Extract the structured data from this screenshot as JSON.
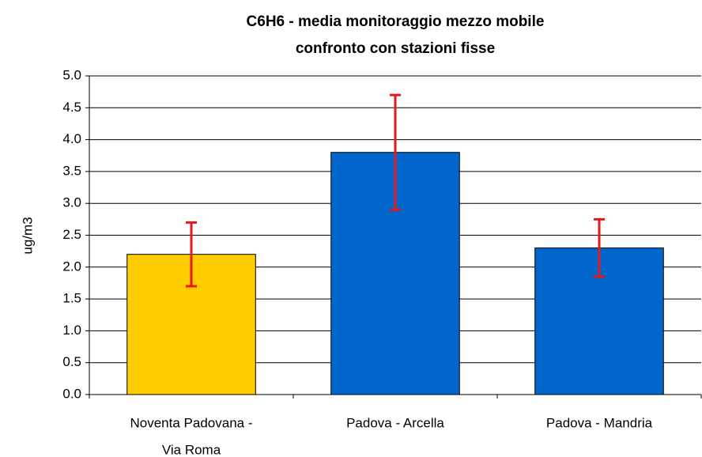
{
  "chart_data": {
    "type": "bar",
    "title": [
      "C6H6 - media monitoraggio mezzo mobile",
      "confronto con stazioni fisse"
    ],
    "ylabel": "ug/m3",
    "categories": [
      [
        "Noventa Padovana -",
        "Via Roma"
      ],
      [
        "Padova - Arcella"
      ],
      [
        "Padova - Mandria"
      ]
    ],
    "values": [
      2.2,
      3.8,
      2.3
    ],
    "errors": [
      0.5,
      0.9,
      0.45
    ],
    "colors": [
      "#ffcc00",
      "#0066cc",
      "#0066cc"
    ],
    "error_color": "#e31a1c",
    "ylim": [
      0,
      5
    ],
    "yticks": [
      {
        "value": 0,
        "label": "0.0"
      },
      {
        "value": 0.5,
        "label": "0.5"
      },
      {
        "value": 1,
        "label": "1.0"
      },
      {
        "value": 1.5,
        "label": "1.5"
      },
      {
        "value": 2,
        "label": "2.0"
      },
      {
        "value": 2.5,
        "label": "2.5"
      },
      {
        "value": 3,
        "label": "3.0"
      },
      {
        "value": 3.5,
        "label": "3.5"
      },
      {
        "value": 4,
        "label": "4.0"
      },
      {
        "value": 4.5,
        "label": "4.5"
      },
      {
        "value": 5,
        "label": "5.0"
      }
    ],
    "grid": true
  }
}
